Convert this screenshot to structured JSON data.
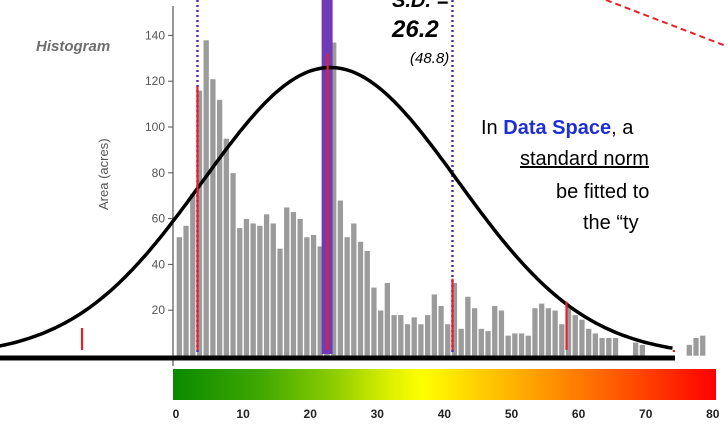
{
  "chart_data": {
    "type": "bar",
    "subtitle_label": "Histogram",
    "ylabel": "Area (acres)",
    "y_ticks": [
      "140",
      "120",
      "100",
      "80",
      "60",
      "40",
      "20"
    ],
    "ylim": [
      0,
      140
    ],
    "x_ticks": [
      "0",
      "10",
      "20",
      "30",
      "40",
      "50",
      "60",
      "70",
      "80"
    ],
    "xlim": [
      0,
      80
    ],
    "bin_width": 1,
    "values": [
      52,
      57,
      71,
      116,
      138,
      121,
      112,
      95,
      80,
      56,
      60,
      58,
      57,
      62,
      58,
      47,
      65,
      63,
      60,
      52,
      53,
      48,
      135,
      137,
      68,
      52,
      58,
      50,
      46,
      30,
      20,
      32,
      18,
      18,
      14,
      17,
      14,
      18,
      27,
      22,
      14,
      32,
      12,
      26,
      21,
      12,
      11,
      22,
      20,
      9,
      10,
      10,
      9,
      21,
      23,
      21,
      20,
      14,
      22,
      18,
      16,
      12,
      10,
      8,
      8,
      8,
      0,
      0,
      6,
      5,
      0,
      0,
      0,
      0,
      0,
      0,
      5,
      8,
      9
    ],
    "normal_curve": {
      "mean": 23,
      "sd": 19,
      "peak": 126
    },
    "sd_annotation": {
      "label": "S.D. =",
      "value": "26.2",
      "paren": "(48.8)"
    },
    "sd_lines_x": [
      3.2,
      41.2
    ],
    "mean_bar_x": 22,
    "red_markers_x": [
      -14,
      3.2,
      22,
      41.2,
      58.2,
      74.2
    ],
    "colorbar": {
      "from": "#0a8a00",
      "mid": "#ffff00",
      "to": "#ff0000"
    },
    "colors": {
      "bars": "#9b9b9b",
      "curve": "#000000",
      "sd_line": "#5a2db3",
      "mean_bar": "#6f3ab8",
      "marker": "#e8202a",
      "dashed_arrow": "#e8202a"
    }
  },
  "annotation": {
    "line1_prefix": "In ",
    "line1_highlight": "Data Space",
    "line1_suffix": ", a",
    "line2": "standard norm",
    "line3": "be fitted to",
    "line4": "the  “ty"
  }
}
